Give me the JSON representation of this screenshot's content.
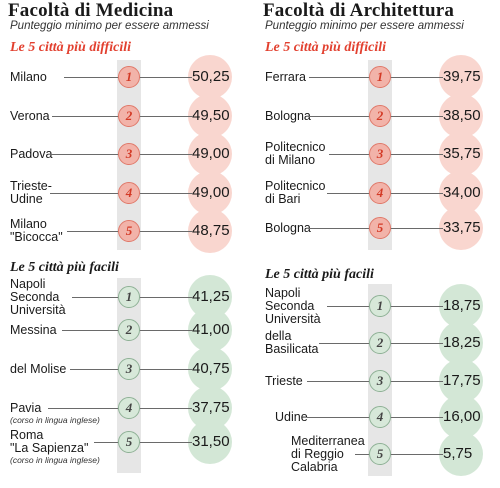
{
  "panels": [
    {
      "title": "Facoltà di Medicina",
      "subtitle": "Punteggio minimo per essere ammessi",
      "hard_heading": "Le 5 città più difficili",
      "easy_heading": "Le 5 città più facili",
      "hard": [
        {
          "rank": "1",
          "city": "Milano",
          "score": "50,25"
        },
        {
          "rank": "2",
          "city": "Verona",
          "score": "49,50"
        },
        {
          "rank": "3",
          "city": "Padova",
          "score": "49,00"
        },
        {
          "rank": "4",
          "city": "Trieste-\nUdine",
          "score": "49,00"
        },
        {
          "rank": "5",
          "city": "Milano\n\"Bicocca\"",
          "score": "48,75"
        }
      ],
      "easy": [
        {
          "rank": "1",
          "city": "Napoli\nSeconda\nUniversità",
          "score": "41,25"
        },
        {
          "rank": "2",
          "city": "Messina",
          "score": "41,00"
        },
        {
          "rank": "3",
          "city": "del Molise",
          "score": "40,75"
        },
        {
          "rank": "4",
          "city": "Pavia",
          "note": "(corso in lingua inglese)",
          "score": "37,75"
        },
        {
          "rank": "5",
          "city": "Roma\n\"La Sapienza\"",
          "note": "(corso in lingua inglese)",
          "score": "31,50"
        }
      ]
    },
    {
      "title": "Facoltà di Architettura",
      "subtitle": "Punteggio minimo per essere ammessi",
      "hard_heading": "Le 5 città più difficili",
      "easy_heading": "Le 5 città più facili",
      "hard": [
        {
          "rank": "1",
          "city": "Ferrara",
          "score": "39,75"
        },
        {
          "rank": "2",
          "city": "Bologna",
          "score": "38,50"
        },
        {
          "rank": "3",
          "city": "Politecnico\ndi Milano",
          "score": "35,75"
        },
        {
          "rank": "4",
          "city": "Politecnico\ndi Bari",
          "score": "34,00"
        },
        {
          "rank": "5",
          "city": "Bologna",
          "score": "33,75"
        }
      ],
      "easy": [
        {
          "rank": "1",
          "city": "Napoli\nSeconda\nUniversità",
          "score": "18,75"
        },
        {
          "rank": "2",
          "city": "della\nBasilicata",
          "score": "18,25"
        },
        {
          "rank": "3",
          "city": "Trieste",
          "score": "17,75"
        },
        {
          "rank": "4",
          "city": "Udine",
          "score": "16,00"
        },
        {
          "rank": "5",
          "city": "Mediterranea\ndi Reggio\nCalabria",
          "score": "5,75"
        }
      ]
    }
  ],
  "colors": {
    "hard_accent": "#e2402f",
    "hard_bubble": "#f9d6cf",
    "easy_bubble": "#d3e7d6"
  }
}
